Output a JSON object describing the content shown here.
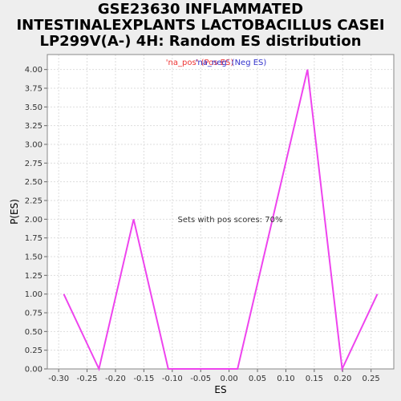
{
  "title_lines": [
    "GSE23630 INFLAMMATED",
    "INTESTINALEXPLANTS LACTOBACILLUS CASEI",
    "LP299V(A-) 4H: Random ES distribution"
  ],
  "colors": {
    "background": "#eeeeee",
    "plot_background": "#ffffff",
    "series": "#ee44ee",
    "grid": "#dddddd",
    "legend_pos": "#ee3333",
    "legend_neg": "#3333cc"
  },
  "chart_data": {
    "type": "line",
    "title": "GSE23630 INFLAMMATED INTESTINALEXPLANTS LACTOBACILLUS CASEI LP299V(A-) 4H: Random ES distribution",
    "xlabel": "ES",
    "ylabel": "P(ES)",
    "xlim": [
      -0.32,
      0.29
    ],
    "ylim": [
      0,
      4.2
    ],
    "x_ticks": [
      "-0.30",
      "-0.25",
      "-0.20",
      "-0.15",
      "-0.10",
      "-0.05",
      "0.00",
      "0.05",
      "0.10",
      "0.15",
      "0.20",
      "0.25"
    ],
    "y_ticks": [
      "0.00",
      "0.25",
      "0.50",
      "0.75",
      "1.00",
      "1.25",
      "1.50",
      "1.75",
      "2.00",
      "2.25",
      "2.50",
      "2.75",
      "3.00",
      "3.25",
      "3.50",
      "3.75",
      "4.00"
    ],
    "grid": true,
    "series": [
      {
        "x": [
          -0.291,
          -0.229,
          -0.168,
          -0.107,
          -0.046,
          0.015,
          0.138,
          0.199,
          0.261
        ],
        "y": [
          1.0,
          0.0,
          2.0,
          0.0,
          0.0,
          0.0,
          4.0,
          0.0,
          1.0
        ]
      }
    ],
    "legend": {
      "pos_label": "'na_pos' (Pos ES)",
      "neg_label": "'na_neg' (Neg ES)"
    },
    "annotation": "Sets with pos scores: 70%"
  }
}
